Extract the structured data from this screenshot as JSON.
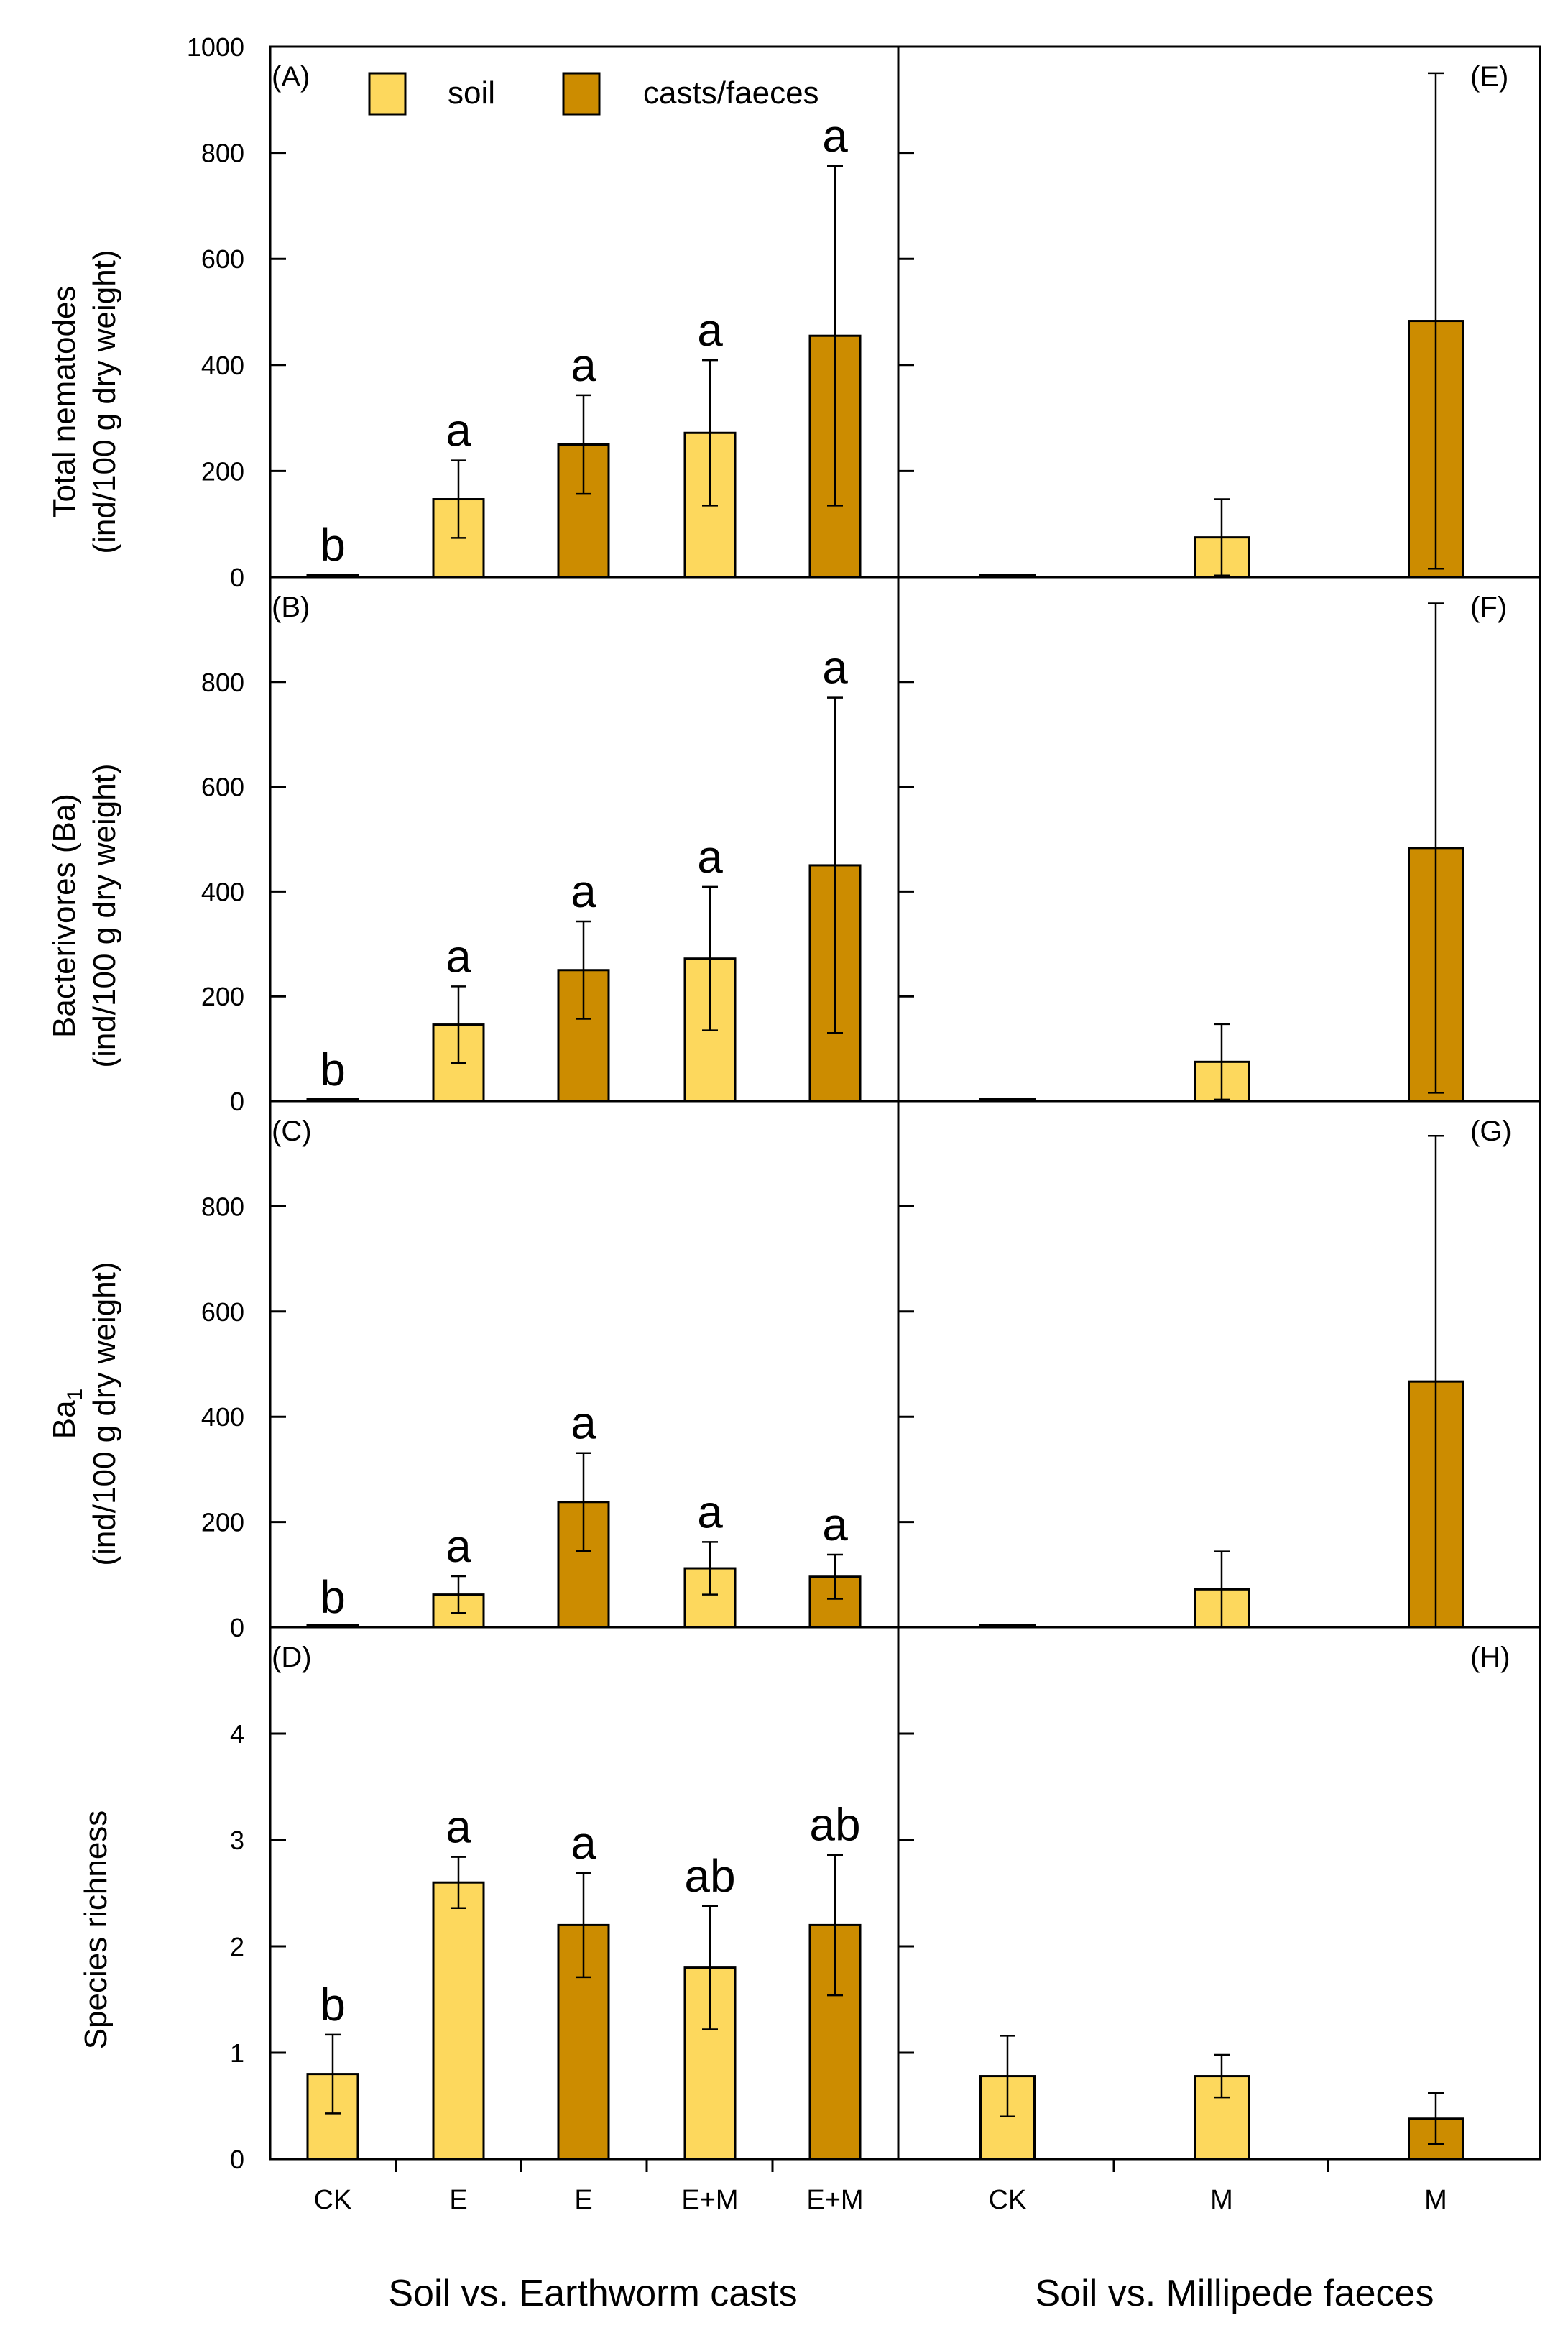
{
  "colors": {
    "soil": "#FDD85D",
    "casts": "#CC8C00",
    "stroke": "#000000"
  },
  "legend": [
    {
      "key": "soil",
      "label": "soil"
    },
    {
      "key": "casts",
      "label": "casts/faeces"
    }
  ],
  "x_titles": {
    "left": "Soil vs. Earthworm casts",
    "right": "Soil vs. Millipede faeces"
  },
  "x_ticks": {
    "left": [
      "CK",
      "E",
      "E",
      "E+M",
      "E+M"
    ],
    "right": [
      "CK",
      "M",
      "M"
    ]
  },
  "rows": [
    {
      "ylabel_lines": [
        "Total nematodes",
        "(ind/100 g dry weight)"
      ],
      "ylim": [
        0,
        1000
      ],
      "yticks": [
        0,
        200,
        400,
        600,
        800,
        1000
      ]
    },
    {
      "ylabel_lines": [
        "Bacterivores (Ba)",
        "(ind/100 g dry weight)"
      ],
      "ylim": [
        0,
        1000
      ],
      "yticks": [
        0,
        200,
        400,
        600,
        800
      ]
    },
    {
      "ylabel_lines": [
        "Ba1",
        "(ind/100 g dry weight)"
      ],
      "ylim": [
        0,
        1000
      ],
      "yticks": [
        0,
        200,
        400,
        600,
        800
      ]
    },
    {
      "ylabel_lines": [
        "Species richness"
      ],
      "ylim": [
        0,
        5
      ],
      "yticks": [
        0,
        1,
        2,
        3,
        4
      ]
    }
  ],
  "chart_data": [
    {
      "panel": "(A)",
      "type": "bar",
      "ylabel": "Total nematodes (ind/100 g dry weight)",
      "ylim": [
        0,
        1000
      ],
      "categories": [
        "CK",
        "E",
        "E",
        "E+M",
        "E+M"
      ],
      "bar_colors": [
        "soil",
        "soil",
        "casts",
        "soil",
        "casts"
      ],
      "values": [
        4,
        147,
        250,
        272,
        455
      ],
      "errors": [
        0,
        73,
        93,
        137,
        320
      ],
      "letters": [
        "b",
        "a",
        "a",
        "a",
        "a"
      ]
    },
    {
      "panel": "(E)",
      "type": "bar",
      "ylabel": "Total nematodes (ind/100 g dry weight)",
      "ylim": [
        0,
        1000
      ],
      "categories": [
        "CK",
        "M",
        "M"
      ],
      "bar_colors": [
        "soil",
        "soil",
        "casts"
      ],
      "values": [
        2,
        75,
        483
      ],
      "errors": [
        0,
        72,
        467
      ],
      "letters": [
        "",
        "",
        ""
      ]
    },
    {
      "panel": "(B)",
      "type": "bar",
      "ylabel": "Bacterivores (Ba) (ind/100 g dry weight)",
      "ylim": [
        0,
        1000
      ],
      "categories": [
        "CK",
        "E",
        "E",
        "E+M",
        "E+M"
      ],
      "bar_colors": [
        "soil",
        "soil",
        "casts",
        "soil",
        "casts"
      ],
      "values": [
        3,
        146,
        250,
        272,
        450
      ],
      "errors": [
        0,
        73,
        93,
        137,
        320
      ],
      "letters": [
        "b",
        "a",
        "a",
        "a",
        "a"
      ]
    },
    {
      "panel": "(F)",
      "type": "bar",
      "ylabel": "Bacterivores (Ba) (ind/100 g dry weight)",
      "ylim": [
        0,
        1000
      ],
      "categories": [
        "CK",
        "M",
        "M"
      ],
      "bar_colors": [
        "soil",
        "soil",
        "casts"
      ],
      "values": [
        2,
        75,
        483
      ],
      "errors": [
        0,
        72,
        467
      ],
      "letters": [
        "",
        "",
        ""
      ]
    },
    {
      "panel": "(C)",
      "type": "bar",
      "ylabel": "Ba1 (ind/100 g dry weight)",
      "ylim": [
        0,
        1000
      ],
      "categories": [
        "CK",
        "E",
        "E",
        "E+M",
        "E+M"
      ],
      "bar_colors": [
        "soil",
        "soil",
        "casts",
        "soil",
        "casts"
      ],
      "values": [
        0,
        62,
        238,
        112,
        96
      ],
      "errors": [
        0,
        35,
        93,
        50,
        42
      ],
      "letters": [
        "b",
        "a",
        "a",
        "a",
        "a"
      ]
    },
    {
      "panel": "(G)",
      "type": "bar",
      "ylabel": "Ba1 (ind/100 g dry weight)",
      "ylim": [
        0,
        1000
      ],
      "categories": [
        "CK",
        "M",
        "M"
      ],
      "bar_colors": [
        "soil",
        "soil",
        "casts"
      ],
      "values": [
        0,
        72,
        467
      ],
      "errors": [
        0,
        72,
        467
      ],
      "letters": [
        "",
        "",
        ""
      ]
    },
    {
      "panel": "(D)",
      "type": "bar",
      "ylabel": "Species richness",
      "ylim": [
        0,
        5
      ],
      "categories": [
        "CK",
        "E",
        "E",
        "E+M",
        "E+M"
      ],
      "bar_colors": [
        "soil",
        "soil",
        "casts",
        "soil",
        "casts"
      ],
      "values": [
        0.8,
        2.6,
        2.2,
        1.8,
        2.2
      ],
      "errors": [
        0.37,
        0.24,
        0.49,
        0.58,
        0.66
      ],
      "letters": [
        "b",
        "a",
        "a",
        "ab",
        "ab"
      ]
    },
    {
      "panel": "(H)",
      "type": "bar",
      "ylabel": "Species richness",
      "ylim": [
        0,
        5
      ],
      "categories": [
        "CK",
        "M",
        "M"
      ],
      "bar_colors": [
        "soil",
        "soil",
        "casts"
      ],
      "values": [
        0.78,
        0.78,
        0.38
      ],
      "errors": [
        0.38,
        0.2,
        0.24
      ],
      "letters": [
        "",
        "",
        ""
      ]
    }
  ]
}
